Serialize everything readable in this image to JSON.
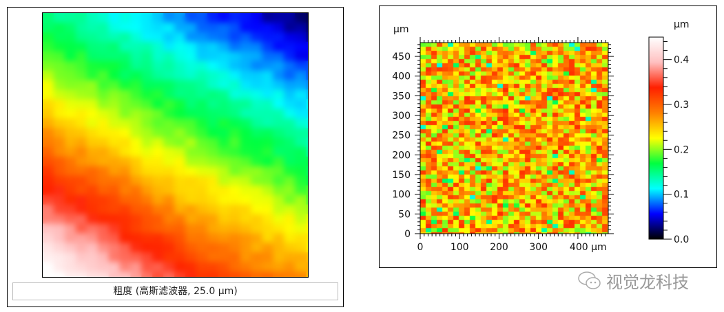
{
  "chart_data": [
    {
      "type": "heatmap",
      "caption": "粗度 (高斯滤波器, 25.0 µm)",
      "colormap": [
        "#000000",
        "#0000ff",
        "#00ffff",
        "#00ff40",
        "#ffff00",
        "#ff8000",
        "#ff2000",
        "#ffc0c0",
        "#ffffff"
      ]
    },
    {
      "type": "heatmap",
      "x_unit": "µm",
      "y_unit": "µm",
      "xlim": [
        0,
        477
      ],
      "ylim": [
        0,
        485
      ],
      "x_ticks": [
        "0",
        "100",
        "200",
        "300",
        "400 µm"
      ],
      "x_tick_values": [
        0,
        100,
        200,
        300,
        400
      ],
      "y_ticks": [
        "0",
        "50",
        "100",
        "150",
        "200",
        "250",
        "300",
        "350",
        "400",
        "450"
      ],
      "y_tick_values": [
        0,
        50,
        100,
        150,
        200,
        250,
        300,
        350,
        400,
        450
      ],
      "colorbar": {
        "unit": "µm",
        "range": [
          0,
          0.45
        ],
        "ticks": [
          "0.0",
          "0.1",
          "0.2",
          "0.3",
          "0.4"
        ],
        "tick_values": [
          0,
          0.1,
          0.2,
          0.3,
          0.4
        ]
      },
      "colormap": [
        "#000000",
        "#0000ff",
        "#00ffff",
        "#00ff40",
        "#ffff00",
        "#ff8000",
        "#ff2000",
        "#ffc0c0",
        "#ffffff"
      ]
    }
  ],
  "watermark": {
    "text": "视觉龙科技",
    "icon": "wechat-icon"
  }
}
